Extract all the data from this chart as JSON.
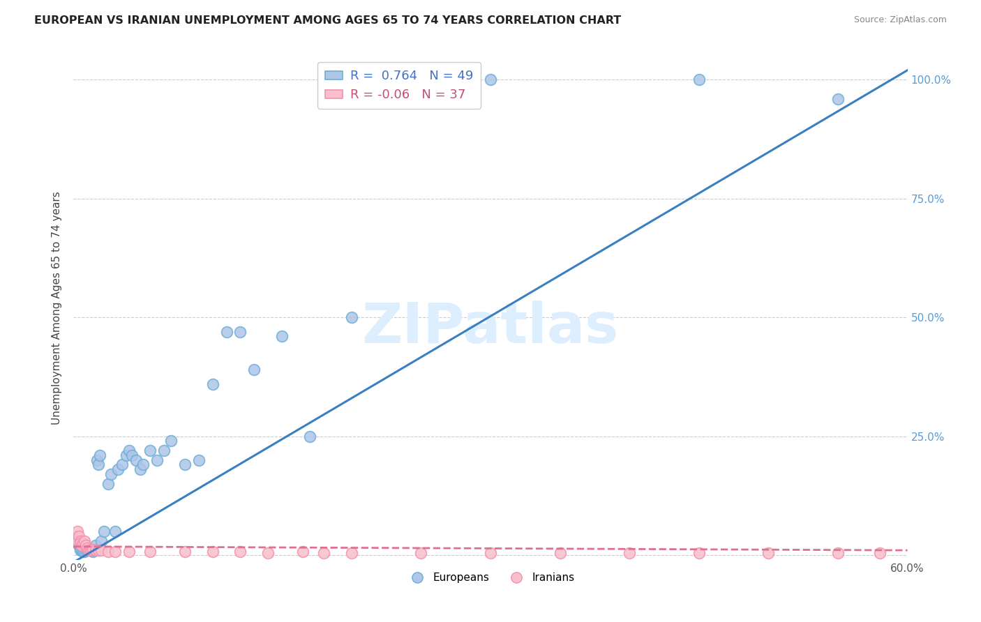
{
  "title": "EUROPEAN VS IRANIAN UNEMPLOYMENT AMONG AGES 65 TO 74 YEARS CORRELATION CHART",
  "source": "Source: ZipAtlas.com",
  "ylabel": "Unemployment Among Ages 65 to 74 years",
  "xlim": [
    0.0,
    0.6
  ],
  "ylim": [
    -0.01,
    1.05
  ],
  "yticks": [
    0.0,
    0.25,
    0.5,
    0.75,
    1.0
  ],
  "ytick_labels": [
    "",
    "25.0%",
    "50.0%",
    "75.0%",
    "100.0%"
  ],
  "xticks": [
    0.0,
    0.1,
    0.2,
    0.3,
    0.4,
    0.5,
    0.6
  ],
  "xtick_labels": [
    "0.0%",
    "",
    "",
    "",
    "",
    "",
    "60.0%"
  ],
  "R_european": 0.764,
  "N_european": 49,
  "R_iranian": -0.06,
  "N_iranian": 37,
  "european_fill_color": "#aec6e8",
  "european_edge_color": "#6baed6",
  "iranian_fill_color": "#f9c0cb",
  "iranian_edge_color": "#f48fb1",
  "trendline_european_color": "#3a7fc1",
  "trendline_iranian_color": "#e07090",
  "watermark": "ZIPatlas",
  "watermark_color": "#ddeeff",
  "background_color": "#ffffff",
  "grid_color": "#cccccc",
  "right_axis_color": "#5b9bd5",
  "european_x": [
    0.002,
    0.003,
    0.003,
    0.004,
    0.005,
    0.005,
    0.006,
    0.007,
    0.008,
    0.009,
    0.01,
    0.011,
    0.012,
    0.013,
    0.014,
    0.015,
    0.016,
    0.017,
    0.018,
    0.019,
    0.02,
    0.022,
    0.025,
    0.027,
    0.03,
    0.032,
    0.035,
    0.038,
    0.04,
    0.042,
    0.045,
    0.048,
    0.05,
    0.055,
    0.06,
    0.065,
    0.07,
    0.08,
    0.09,
    0.1,
    0.11,
    0.12,
    0.13,
    0.15,
    0.17,
    0.2,
    0.3,
    0.45,
    0.55
  ],
  "european_y": [
    0.035,
    0.03,
    0.025,
    0.02,
    0.015,
    0.01,
    0.01,
    0.008,
    0.008,
    0.01,
    0.012,
    0.015,
    0.012,
    0.01,
    0.008,
    0.01,
    0.02,
    0.2,
    0.19,
    0.21,
    0.03,
    0.05,
    0.15,
    0.17,
    0.05,
    0.18,
    0.19,
    0.21,
    0.22,
    0.21,
    0.2,
    0.18,
    0.19,
    0.22,
    0.2,
    0.22,
    0.24,
    0.19,
    0.2,
    0.36,
    0.47,
    0.47,
    0.39,
    0.46,
    0.25,
    0.5,
    1.0,
    1.0,
    0.96
  ],
  "iranian_x": [
    0.002,
    0.003,
    0.003,
    0.004,
    0.005,
    0.005,
    0.006,
    0.007,
    0.008,
    0.009,
    0.01,
    0.011,
    0.012,
    0.013,
    0.014,
    0.016,
    0.018,
    0.02,
    0.025,
    0.03,
    0.04,
    0.055,
    0.08,
    0.1,
    0.12,
    0.14,
    0.165,
    0.18,
    0.2,
    0.25,
    0.3,
    0.35,
    0.4,
    0.45,
    0.5,
    0.55,
    0.58
  ],
  "iranian_y": [
    0.04,
    0.05,
    0.03,
    0.04,
    0.03,
    0.025,
    0.02,
    0.025,
    0.03,
    0.02,
    0.015,
    0.01,
    0.01,
    0.01,
    0.012,
    0.01,
    0.01,
    0.01,
    0.008,
    0.008,
    0.008,
    0.008,
    0.008,
    0.008,
    0.008,
    0.005,
    0.008,
    0.005,
    0.005,
    0.005,
    0.005,
    0.005,
    0.005,
    0.005,
    0.005,
    0.005,
    0.005
  ],
  "eu_trendline_x": [
    0.0,
    0.6
  ],
  "eu_trendline_y": [
    -0.015,
    1.02
  ],
  "ir_trendline_x": [
    0.0,
    0.6
  ],
  "ir_trendline_y": [
    0.018,
    0.01
  ]
}
